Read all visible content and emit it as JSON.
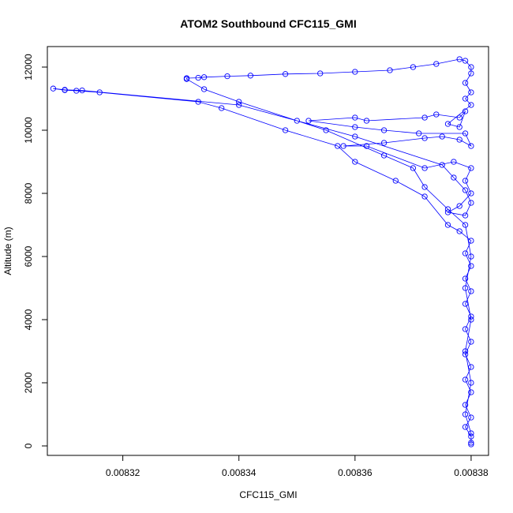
{
  "chart_data": {
    "type": "scatter",
    "title": "ATOM2 Southbound CFC115_GMI",
    "xlabel": "CFC115_GMI",
    "ylabel": "Altitude (m)",
    "xlim": [
      0.008307,
      0.008383
    ],
    "ylim": [
      -300,
      12650
    ],
    "x_ticks": [
      0.00832,
      0.00834,
      0.00836,
      0.00838
    ],
    "x_tick_labels": [
      "0.00832",
      "0.00834",
      "0.00836",
      "0.00838"
    ],
    "y_ticks": [
      0,
      2000,
      4000,
      6000,
      8000,
      10000,
      12000
    ],
    "y_tick_labels": [
      "0",
      "2000",
      "4000",
      "6000",
      "8000",
      "10000",
      "12000"
    ],
    "grid": false,
    "legend": "none",
    "series_color": "#0000ff",
    "marker": "open-circle",
    "line": "connected",
    "points": [
      [
        0.00838,
        100
      ],
      [
        0.00838,
        300
      ],
      [
        0.008379,
        600
      ],
      [
        0.00838,
        900
      ],
      [
        0.008379,
        1300
      ],
      [
        0.00838,
        1700
      ],
      [
        0.008379,
        2100
      ],
      [
        0.00838,
        2500
      ],
      [
        0.008379,
        2900
      ],
      [
        0.00838,
        3300
      ],
      [
        0.008379,
        3700
      ],
      [
        0.00838,
        4100
      ],
      [
        0.008379,
        4500
      ],
      [
        0.00838,
        4900
      ],
      [
        0.008379,
        5300
      ],
      [
        0.00838,
        5700
      ],
      [
        0.008379,
        6100
      ],
      [
        0.00838,
        6500
      ],
      [
        0.008378,
        6800
      ],
      [
        0.008376,
        7000
      ],
      [
        0.008372,
        7900
      ],
      [
        0.008367,
        8400
      ],
      [
        0.00836,
        9000
      ],
      [
        0.008357,
        9500
      ],
      [
        0.008348,
        10000
      ],
      [
        0.008337,
        10700
      ],
      [
        0.008333,
        10900
      ],
      [
        0.008316,
        11200
      ],
      [
        0.008312,
        11250
      ],
      [
        0.00831,
        11270
      ],
      [
        0.008308,
        11320
      ],
      [
        0.00831,
        11280
      ],
      [
        0.008313,
        11260
      ],
      [
        0.00834,
        10800
      ],
      [
        0.00836,
        9800
      ],
      [
        0.008375,
        8900
      ],
      [
        0.008377,
        8500
      ],
      [
        0.008379,
        8100
      ],
      [
        0.00838,
        7700
      ],
      [
        0.008379,
        7300
      ],
      [
        0.008376,
        7400
      ],
      [
        0.008378,
        7600
      ],
      [
        0.00838,
        8000
      ],
      [
        0.008379,
        8400
      ],
      [
        0.00838,
        8800
      ],
      [
        0.008377,
        9000
      ],
      [
        0.008372,
        8800
      ],
      [
        0.008362,
        9500
      ],
      [
        0.008358,
        9500
      ],
      [
        0.008365,
        9600
      ],
      [
        0.008372,
        9750
      ],
      [
        0.008375,
        9800
      ],
      [
        0.008378,
        9700
      ],
      [
        0.00838,
        9500
      ],
      [
        0.008379,
        9900
      ],
      [
        0.008371,
        9900
      ],
      [
        0.008365,
        10000
      ],
      [
        0.00836,
        10100
      ],
      [
        0.008352,
        10300
      ],
      [
        0.00836,
        10400
      ],
      [
        0.008362,
        10300
      ],
      [
        0.008372,
        10400
      ],
      [
        0.008374,
        10500
      ],
      [
        0.008378,
        10400
      ],
      [
        0.008379,
        10600
      ],
      [
        0.008378,
        10100
      ],
      [
        0.008376,
        10200
      ],
      [
        0.00838,
        10800
      ],
      [
        0.008379,
        11000
      ],
      [
        0.00838,
        11200
      ],
      [
        0.008379,
        11500
      ],
      [
        0.00838,
        11800
      ],
      [
        0.00838,
        12000
      ],
      [
        0.008379,
        12200
      ],
      [
        0.008378,
        12250
      ],
      [
        0.008374,
        12100
      ],
      [
        0.00837,
        12000
      ],
      [
        0.008366,
        11900
      ],
      [
        0.00836,
        11850
      ],
      [
        0.008354,
        11800
      ],
      [
        0.008348,
        11780
      ],
      [
        0.008342,
        11730
      ],
      [
        0.008338,
        11710
      ],
      [
        0.008334,
        11680
      ],
      [
        0.008333,
        11660
      ],
      [
        0.008331,
        11650
      ],
      [
        0.008331,
        11620
      ],
      [
        0.008334,
        11300
      ],
      [
        0.00834,
        10900
      ],
      [
        0.00835,
        10300
      ],
      [
        0.008355,
        10000
      ],
      [
        0.008365,
        9200
      ],
      [
        0.00837,
        8800
      ],
      [
        0.008372,
        8200
      ],
      [
        0.008376,
        7500
      ],
      [
        0.008379,
        7000
      ],
      [
        0.00838,
        6000
      ],
      [
        0.008379,
        5000
      ],
      [
        0.00838,
        4000
      ],
      [
        0.008379,
        3000
      ],
      [
        0.00838,
        2000
      ],
      [
        0.008379,
        1000
      ],
      [
        0.00838,
        400
      ],
      [
        0.00838,
        50
      ]
    ]
  }
}
